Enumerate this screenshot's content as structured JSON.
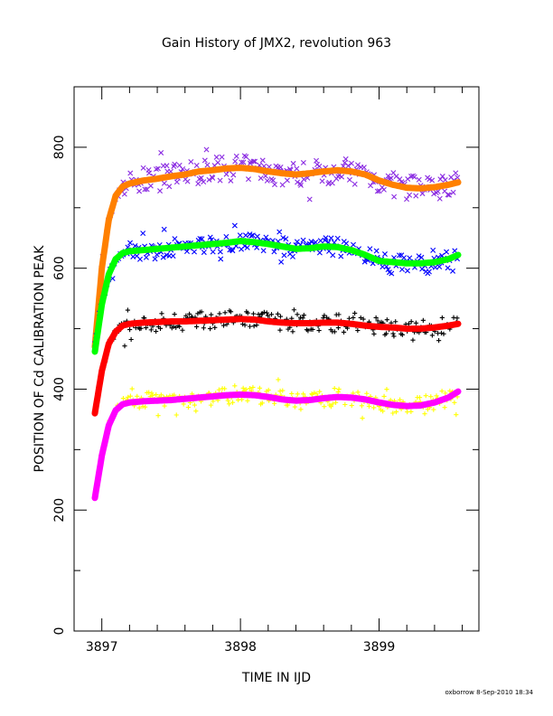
{
  "chart_data": {
    "type": "scatter",
    "title": "Gain History of JMX2, revolution 963",
    "xlabel": "TIME IN IJD",
    "ylabel": "POSITION OF Cd CALIBRATION PEAK",
    "footer": "oxborrow 8-Sep-2010 18:34",
    "xlim": [
      3896.8,
      3899.72
    ],
    "ylim": [
      0,
      900
    ],
    "x_ticks": [
      3897,
      3898,
      3899
    ],
    "x_tick_labels": [
      "3897",
      "3898",
      "3899"
    ],
    "y_ticks": [
      0,
      200,
      400,
      600,
      800
    ],
    "y_tick_labels": [
      "0",
      "200",
      "400",
      "600",
      "800"
    ],
    "grid": false,
    "legend": "none",
    "series": [
      {
        "marker": "x",
        "color": "#8a2be2",
        "x": [
          3896.95,
          3897.0,
          3897.05,
          3897.1,
          3897.15,
          3897.2,
          3897.3,
          3897.4,
          3897.5,
          3897.6,
          3897.7,
          3897.8,
          3897.9,
          3898.0,
          3898.1,
          3898.2,
          3898.3,
          3898.4,
          3898.5,
          3898.6,
          3898.7,
          3898.8,
          3898.9,
          3899.0,
          3899.1,
          3899.2,
          3899.3,
          3899.4,
          3899.5,
          3899.57
        ],
        "y": [
          480,
          600,
          680,
          720,
          735,
          740,
          745,
          748,
          752,
          755,
          760,
          762,
          765,
          766,
          764,
          760,
          757,
          755,
          757,
          760,
          762,
          760,
          755,
          745,
          738,
          733,
          732,
          734,
          738,
          742
        ]
      },
      {
        "marker": "line",
        "color": "#ff8000",
        "x": [
          3896.95,
          3897.0,
          3897.05,
          3897.1,
          3897.15,
          3897.2,
          3897.3,
          3897.4,
          3897.5,
          3897.6,
          3897.7,
          3897.8,
          3897.9,
          3898.0,
          3898.1,
          3898.2,
          3898.3,
          3898.4,
          3898.5,
          3898.6,
          3898.7,
          3898.8,
          3898.9,
          3899.0,
          3899.1,
          3899.2,
          3899.3,
          3899.4,
          3899.5,
          3899.57
        ],
        "y": [
          470,
          600,
          680,
          720,
          735,
          740,
          745,
          748,
          752,
          755,
          760,
          762,
          765,
          766,
          764,
          760,
          757,
          755,
          757,
          760,
          762,
          760,
          755,
          745,
          738,
          733,
          732,
          734,
          738,
          742
        ]
      },
      {
        "marker": "x",
        "color": "#0000ff",
        "x": [
          3896.95,
          3897.0,
          3897.05,
          3897.1,
          3897.15,
          3897.2,
          3897.3,
          3897.4,
          3897.5,
          3897.6,
          3897.7,
          3897.8,
          3897.9,
          3898.0,
          3898.1,
          3898.2,
          3898.3,
          3898.4,
          3898.5,
          3898.6,
          3898.7,
          3898.8,
          3898.9,
          3899.0,
          3899.1,
          3899.2,
          3899.3,
          3899.4,
          3899.5,
          3899.57
        ],
        "y": [
          470,
          540,
          590,
          615,
          625,
          628,
          630,
          632,
          634,
          636,
          638,
          640,
          642,
          645,
          643,
          640,
          636,
          632,
          633,
          636,
          635,
          630,
          622,
          612,
          610,
          608,
          608,
          610,
          615,
          622
        ]
      },
      {
        "marker": "line",
        "color": "#00ff00",
        "x": [
          3896.95,
          3897.0,
          3897.05,
          3897.1,
          3897.15,
          3897.2,
          3897.3,
          3897.4,
          3897.5,
          3897.6,
          3897.7,
          3897.8,
          3897.9,
          3898.0,
          3898.1,
          3898.2,
          3898.3,
          3898.4,
          3898.5,
          3898.6,
          3898.7,
          3898.8,
          3898.9,
          3899.0,
          3899.1,
          3899.2,
          3899.3,
          3899.4,
          3899.5,
          3899.57
        ],
        "y": [
          462,
          540,
          590,
          615,
          625,
          628,
          630,
          632,
          634,
          636,
          638,
          640,
          642,
          645,
          643,
          640,
          636,
          632,
          633,
          636,
          635,
          630,
          622,
          612,
          610,
          608,
          608,
          610,
          615,
          622
        ]
      },
      {
        "marker": "+",
        "color": "#000000",
        "x": [
          3896.95,
          3897.0,
          3897.05,
          3897.1,
          3897.15,
          3897.2,
          3897.3,
          3897.4,
          3897.5,
          3897.6,
          3897.7,
          3897.8,
          3897.9,
          3898.0,
          3898.1,
          3898.2,
          3898.3,
          3898.4,
          3898.5,
          3898.6,
          3898.7,
          3898.8,
          3898.9,
          3899.0,
          3899.1,
          3899.2,
          3899.3,
          3899.4,
          3899.5,
          3899.57
        ],
        "y": [
          365,
          430,
          475,
          495,
          505,
          508,
          510,
          511,
          512,
          512,
          513,
          514,
          515,
          516,
          515,
          512,
          510,
          509,
          509,
          510,
          510,
          508,
          505,
          503,
          502,
          500,
          500,
          502,
          505,
          508
        ]
      },
      {
        "marker": "line",
        "color": "#ff0000",
        "x": [
          3896.95,
          3897.0,
          3897.05,
          3897.1,
          3897.15,
          3897.2,
          3897.3,
          3897.4,
          3897.5,
          3897.6,
          3897.7,
          3897.8,
          3897.9,
          3898.0,
          3898.1,
          3898.2,
          3898.3,
          3898.4,
          3898.5,
          3898.6,
          3898.7,
          3898.8,
          3898.9,
          3899.0,
          3899.1,
          3899.2,
          3899.3,
          3899.4,
          3899.5,
          3899.57
        ],
        "y": [
          360,
          430,
          475,
          495,
          505,
          508,
          510,
          511,
          512,
          512,
          513,
          514,
          515,
          516,
          515,
          512,
          510,
          509,
          509,
          510,
          510,
          508,
          505,
          503,
          502,
          500,
          500,
          502,
          505,
          508
        ]
      },
      {
        "marker": "+",
        "color": "#ffff00",
        "x": [
          3896.95,
          3897.0,
          3897.05,
          3897.1,
          3897.15,
          3897.2,
          3897.3,
          3897.4,
          3897.5,
          3897.6,
          3897.7,
          3897.8,
          3897.9,
          3898.0,
          3898.1,
          3898.2,
          3898.3,
          3898.4,
          3898.5,
          3898.6,
          3898.7,
          3898.8,
          3898.9,
          3899.0,
          3899.1,
          3899.2,
          3899.3,
          3899.4,
          3899.5,
          3899.57
        ],
        "y": [
          225,
          290,
          340,
          365,
          375,
          378,
          380,
          381,
          382,
          384,
          386,
          388,
          390,
          391,
          390,
          387,
          383,
          381,
          382,
          385,
          387,
          386,
          383,
          378,
          374,
          372,
          373,
          378,
          386,
          396
        ]
      },
      {
        "marker": "line",
        "color": "#ff00ff",
        "x": [
          3896.95,
          3897.0,
          3897.05,
          3897.1,
          3897.15,
          3897.2,
          3897.3,
          3897.4,
          3897.5,
          3897.6,
          3897.7,
          3897.8,
          3897.9,
          3898.0,
          3898.1,
          3898.2,
          3898.3,
          3898.4,
          3898.5,
          3898.6,
          3898.7,
          3898.8,
          3898.9,
          3899.0,
          3899.1,
          3899.2,
          3899.3,
          3899.4,
          3899.5,
          3899.57
        ],
        "y": [
          220,
          290,
          340,
          365,
          375,
          378,
          380,
          381,
          382,
          384,
          386,
          388,
          390,
          391,
          390,
          387,
          383,
          381,
          382,
          385,
          387,
          386,
          383,
          378,
          374,
          372,
          373,
          378,
          386,
          396
        ]
      }
    ]
  }
}
